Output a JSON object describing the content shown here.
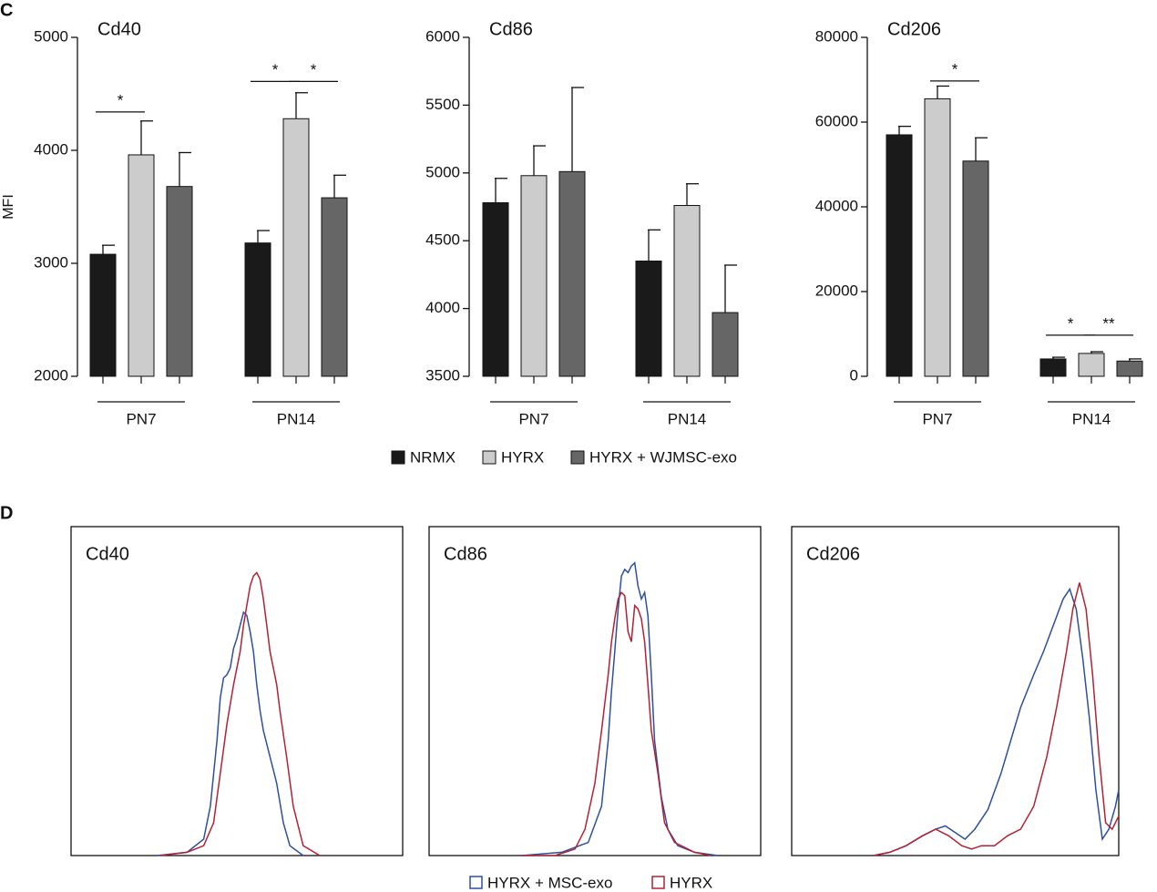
{
  "panel_labels": [
    "C",
    "D"
  ],
  "chart_data": [
    {
      "type": "bar",
      "title": "Cd40",
      "ylabel": "MFI",
      "categories": [
        "PN7",
        "PN14"
      ],
      "ylim": [
        2000,
        5000
      ],
      "yticks": [
        2000,
        3000,
        4000,
        5000
      ],
      "series": [
        {
          "name": "NRMX",
          "color": "#1a1a1a",
          "values": [
            3080,
            3180
          ],
          "errors": [
            80,
            110
          ]
        },
        {
          "name": "HYRX",
          "color": "#cccccc",
          "values": [
            3960,
            4280
          ],
          "errors": [
            300,
            230
          ]
        },
        {
          "name": "HYRX + WJMSC-exo",
          "color": "#666666",
          "values": [
            3680,
            3580
          ],
          "errors": [
            300,
            200
          ]
        }
      ],
      "significance": [
        {
          "text": "*",
          "y": 4340
        },
        {
          "text": "*",
          "y": 4610
        },
        {
          "text": "*",
          "y": 4610
        }
      ]
    },
    {
      "type": "bar",
      "title": "Cd86",
      "categories": [
        "PN7",
        "PN14"
      ],
      "ylim": [
        3500,
        6000
      ],
      "yticks": [
        3500,
        4000,
        4500,
        5000,
        5500,
        6000
      ],
      "series": [
        {
          "values": [
            4780,
            4350
          ],
          "errors": [
            180,
            230
          ]
        },
        {
          "values": [
            4980,
            4760
          ],
          "errors": [
            220,
            160
          ]
        },
        {
          "values": [
            5010,
            3970
          ],
          "errors": [
            620,
            350
          ]
        }
      ]
    },
    {
      "type": "bar",
      "title": "Cd206",
      "categories": [
        "PN7",
        "PN14"
      ],
      "ylim": [
        0,
        80000
      ],
      "yticks": [
        0,
        20000,
        40000,
        60000,
        80000
      ],
      "series": [
        {
          "values": [
            57000,
            4100
          ],
          "errors": [
            2000,
            400
          ]
        },
        {
          "values": [
            65500,
            5400
          ],
          "errors": [
            3000,
            400
          ]
        },
        {
          "values": [
            50800,
            3600
          ],
          "errors": [
            5500,
            500
          ]
        }
      ],
      "significance": [
        {
          "text": "*",
          "y": 69700
        },
        {
          "text": "*",
          "y": 9700
        },
        {
          "text": "**",
          "y": 9700
        }
      ]
    },
    {
      "type": "line",
      "title": "Cd40",
      "xlim": [
        0,
        100
      ],
      "ylim": [
        0,
        100
      ],
      "series": [
        {
          "name": "HYRX + MSC-exo",
          "color": "#2d4fa0",
          "x": [
            26,
            35,
            40,
            42,
            44,
            45,
            46,
            47,
            48,
            49,
            50,
            51,
            52,
            53,
            54,
            55,
            56,
            57,
            58,
            60,
            62,
            64,
            66,
            70
          ],
          "values": [
            0,
            1,
            5,
            15,
            35,
            48,
            54,
            55,
            57,
            63,
            66,
            70,
            74,
            73,
            68,
            62,
            52,
            44,
            38,
            30,
            22,
            10,
            3,
            0
          ]
        },
        {
          "name": "HYRX",
          "color": "#b22234",
          "x": [
            27,
            35,
            40,
            43,
            45,
            47,
            49,
            51,
            52,
            53,
            54,
            55,
            56,
            57,
            58,
            59,
            60,
            62,
            63,
            65,
            67,
            70,
            75
          ],
          "values": [
            0,
            1,
            3,
            10,
            25,
            40,
            52,
            62,
            70,
            76,
            82,
            85,
            86,
            84,
            78,
            70,
            62,
            52,
            44,
            30,
            15,
            3,
            0
          ]
        }
      ]
    },
    {
      "type": "line",
      "title": "Cd86",
      "xlim": [
        0,
        100
      ],
      "ylim": [
        0,
        100
      ],
      "series": [
        {
          "x": [
            28,
            40,
            48,
            52,
            54,
            55,
            56,
            57,
            58,
            59,
            60,
            61,
            62,
            63,
            64,
            65,
            66,
            67,
            68,
            70,
            72,
            75,
            80,
            87
          ],
          "values": [
            0,
            1,
            4,
            15,
            35,
            50,
            62,
            75,
            85,
            87,
            86,
            88,
            89,
            82,
            78,
            80,
            73,
            55,
            35,
            18,
            8,
            3,
            1,
            0
          ]
        },
        {
          "x": [
            28,
            38,
            44,
            47,
            50,
            52,
            54,
            55,
            56,
            57,
            58,
            59,
            60,
            61,
            62,
            63,
            64,
            65,
            66,
            67,
            69,
            71,
            74,
            80,
            85
          ],
          "values": [
            0,
            0,
            2,
            8,
            22,
            38,
            55,
            65,
            72,
            78,
            80,
            79,
            68,
            65,
            76,
            75,
            72,
            65,
            52,
            38,
            25,
            10,
            4,
            1,
            0
          ]
        }
      ]
    },
    {
      "type": "line",
      "title": "Cd206",
      "xlim": [
        0,
        100
      ],
      "ylim": [
        0,
        100
      ],
      "series": [
        {
          "x": [
            25,
            30,
            35,
            40,
            44,
            47,
            50,
            53,
            56,
            60,
            64,
            67,
            70,
            74,
            77,
            80,
            83,
            85,
            87,
            89,
            91,
            93,
            95,
            97,
            99,
            100
          ],
          "values": [
            0,
            1,
            3,
            6,
            8,
            9,
            7,
            5,
            8,
            14,
            25,
            35,
            45,
            55,
            62,
            70,
            78,
            81,
            75,
            60,
            42,
            20,
            5,
            8,
            15,
            20
          ]
        },
        {
          "x": [
            25,
            30,
            35,
            40,
            44,
            48,
            52,
            55,
            58,
            62,
            66,
            70,
            74,
            78,
            81,
            84,
            86,
            88,
            90,
            92,
            94,
            96,
            98,
            100
          ],
          "values": [
            0,
            1,
            3,
            6,
            8,
            6,
            3,
            2,
            3,
            3,
            6,
            8,
            15,
            30,
            45,
            62,
            75,
            83,
            75,
            55,
            30,
            10,
            8,
            12
          ]
        }
      ]
    }
  ]
}
